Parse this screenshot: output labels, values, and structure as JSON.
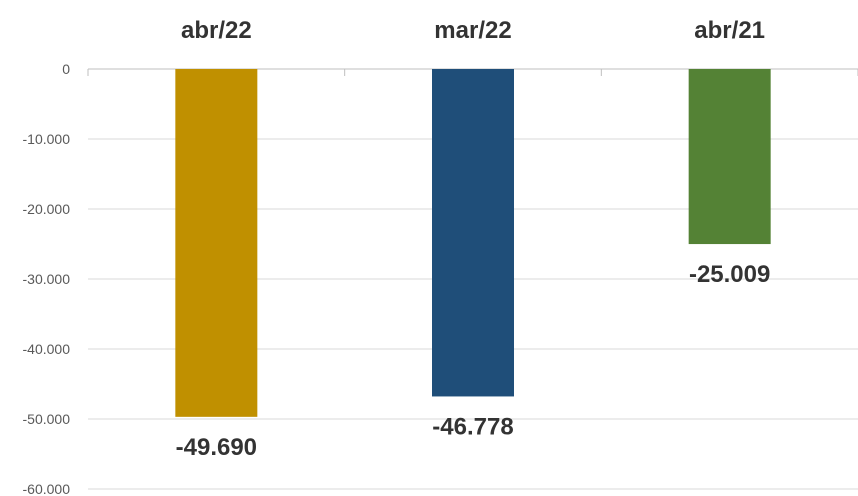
{
  "chart_data": {
    "type": "bar",
    "categories": [
      "abr/22",
      "mar/22",
      "abr/21"
    ],
    "values": [
      -49690,
      -46778,
      -25009
    ],
    "data_labels": [
      "-49.690",
      "-46.778",
      "-25.009"
    ],
    "colors": [
      "#C09000",
      "#1F4E79",
      "#548235"
    ],
    "title": "",
    "xlabel": "",
    "ylabel": "",
    "ylim": [
      -60000,
      0
    ],
    "yticks": [
      0,
      -10000,
      -20000,
      -30000,
      -40000,
      -50000,
      -60000
    ],
    "ytick_labels": [
      "0",
      "-10.000",
      "-20.000",
      "-30.000",
      "-40.000",
      "-50.000",
      "-60.000"
    ],
    "category_axis_position": "top",
    "grid": true,
    "legend": "none"
  }
}
